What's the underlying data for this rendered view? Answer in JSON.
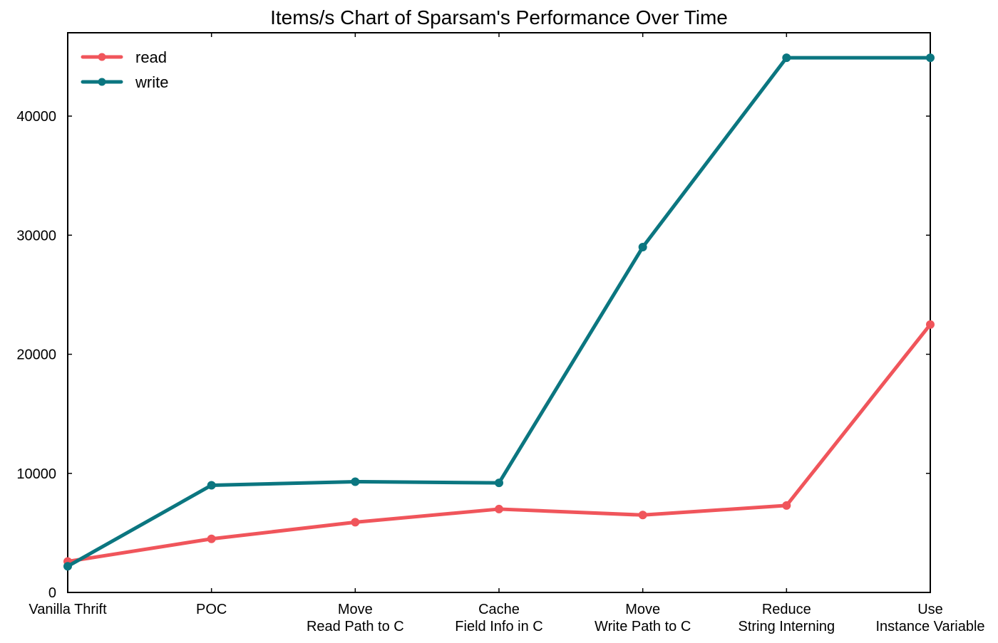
{
  "chart_data": {
    "type": "line",
    "title": "Items/s Chart of Sparsam's Performance Over Time",
    "xlabel": "",
    "ylabel": "",
    "categories": [
      [
        "Vanilla Thrift"
      ],
      [
        "POC"
      ],
      [
        "Move",
        "Read Path to C"
      ],
      [
        "Cache",
        "Field Info in C"
      ],
      [
        "Move",
        "Write Path to C"
      ],
      [
        "Reduce",
        "String Interning"
      ],
      [
        "Use",
        "Instance Variable"
      ]
    ],
    "series": [
      {
        "name": "read",
        "color": "#f0555b",
        "values": [
          2600,
          4500,
          5900,
          7000,
          6500,
          7300,
          22500
        ]
      },
      {
        "name": "write",
        "color": "#0b7680",
        "values": [
          2200,
          9000,
          9300,
          9200,
          29000,
          44900,
          44900
        ]
      }
    ],
    "ylim": [
      0,
      47000
    ],
    "yticks": [
      0,
      10000,
      20000,
      30000,
      40000
    ],
    "yticks_labels": [
      "0",
      "10000",
      "20000",
      "30000",
      "40000"
    ],
    "grid": false,
    "legend": "top-left"
  }
}
